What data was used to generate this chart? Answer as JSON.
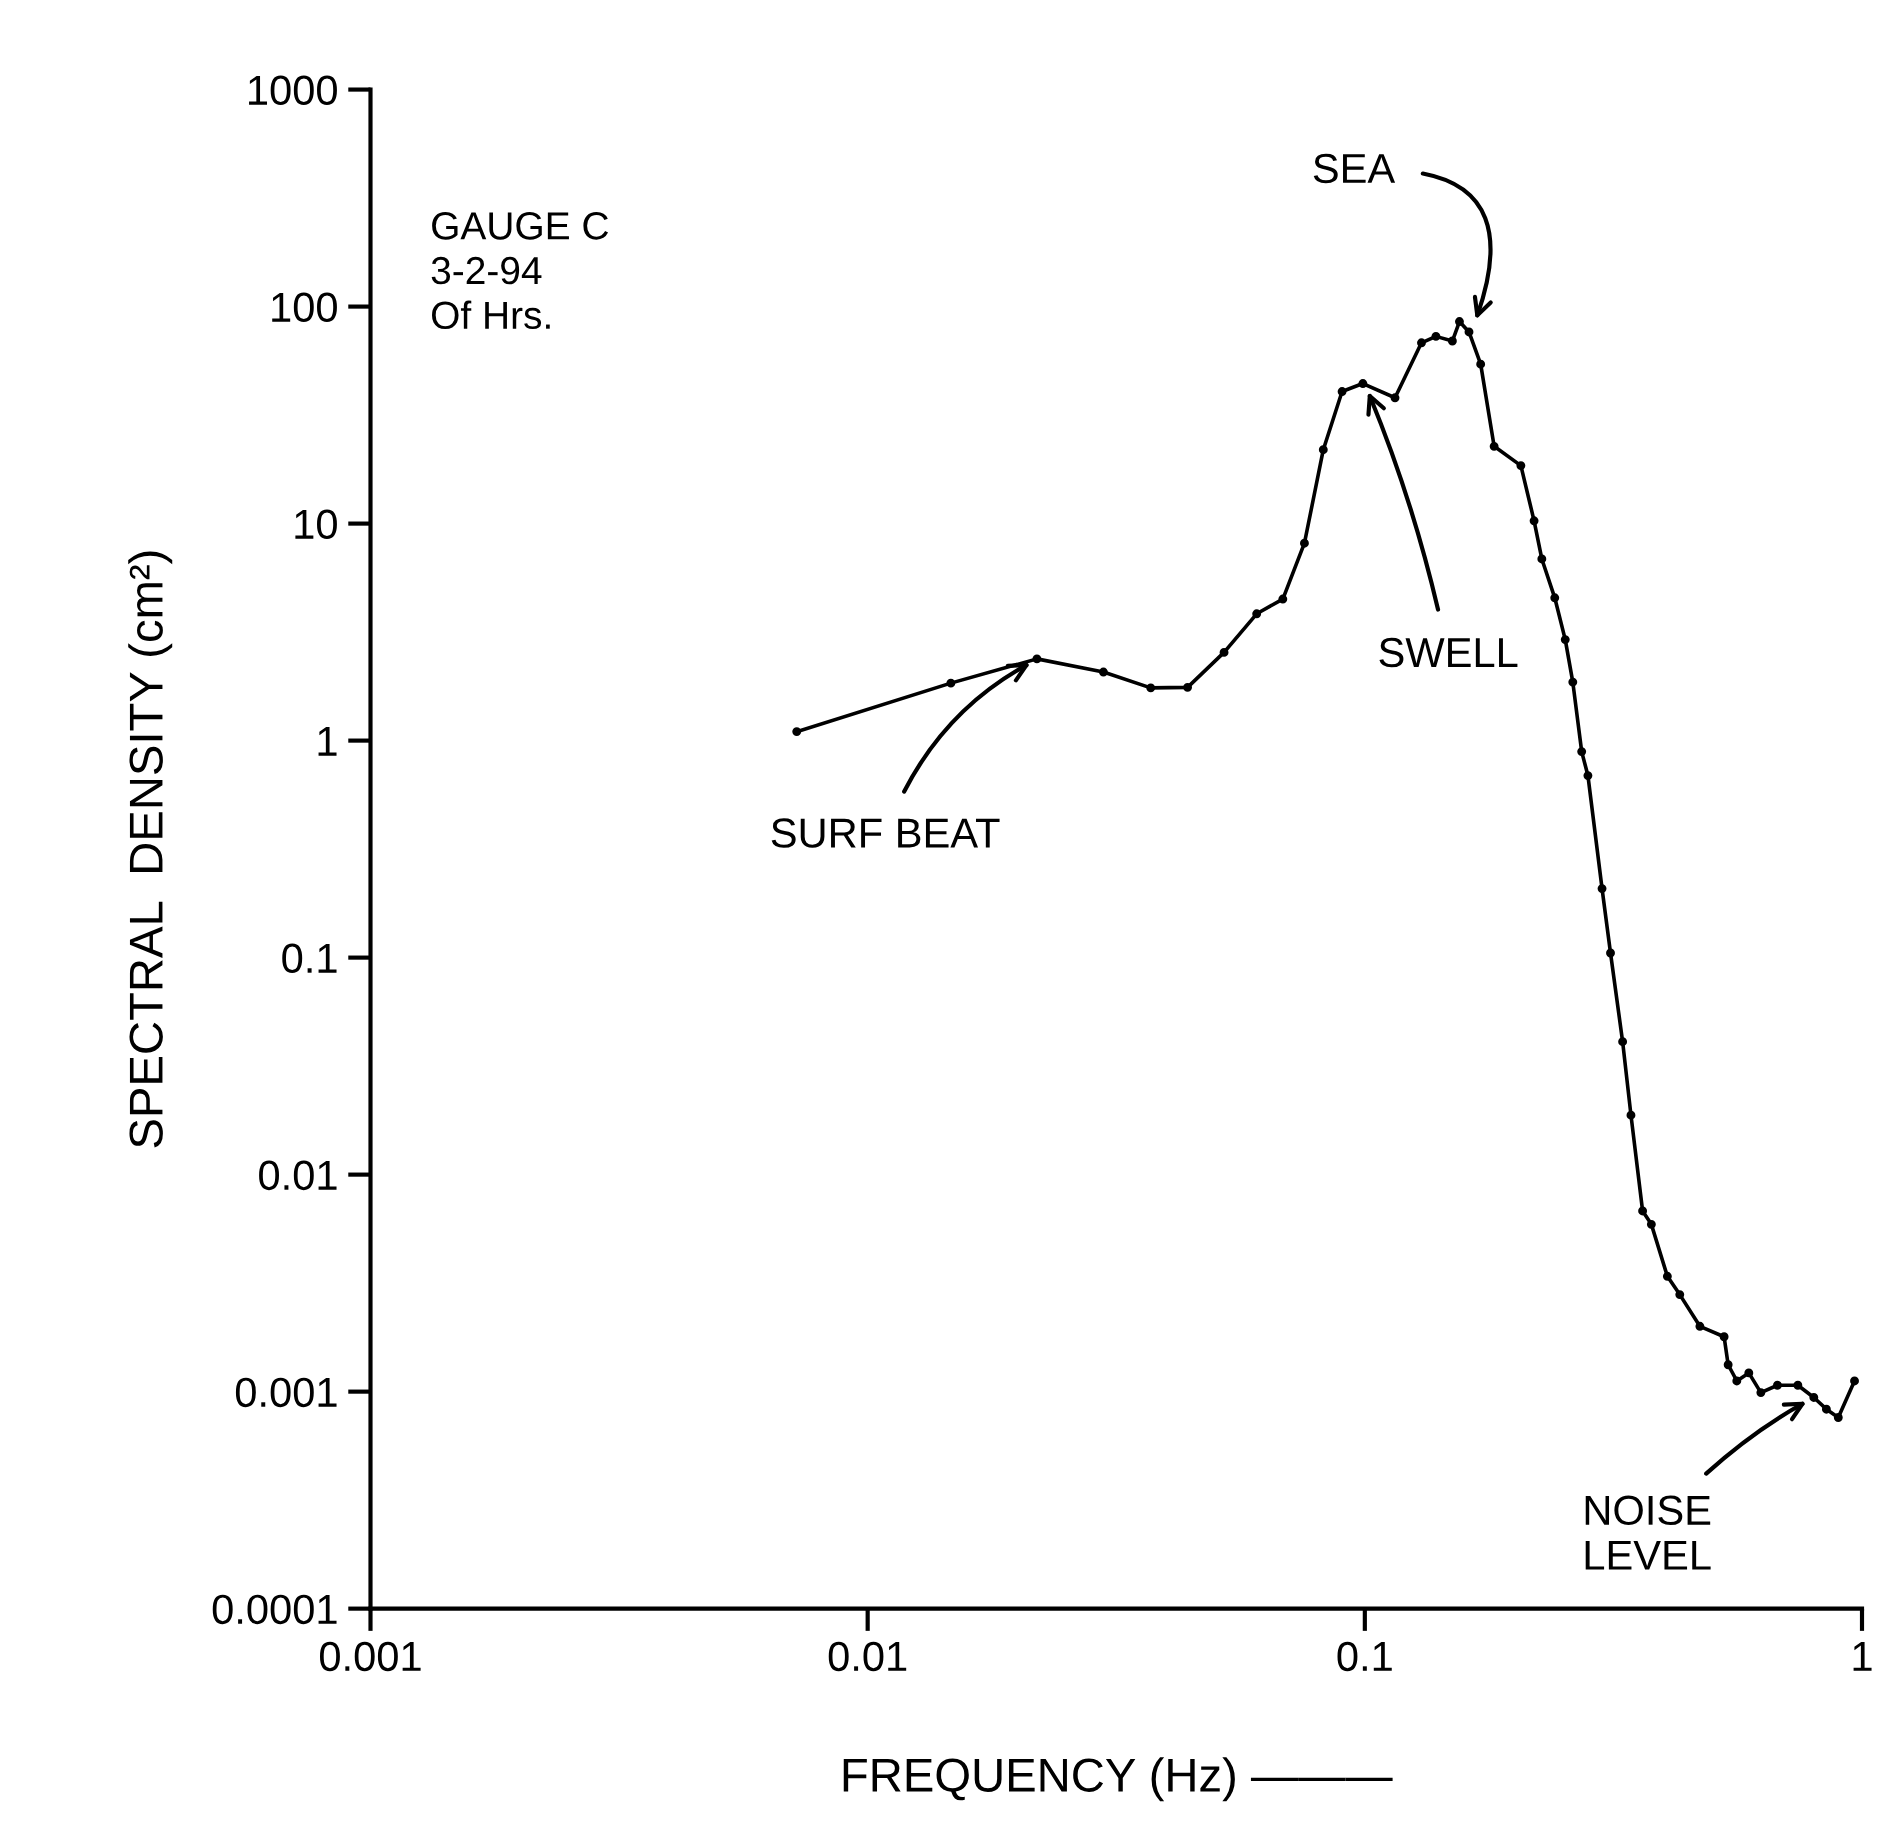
{
  "chart_data": {
    "type": "line",
    "xlabel": "FREQUENCY (Hz) ———",
    "ylabel": "SPECTRAL  DENSITY (cm²)",
    "log": "xy",
    "xlim": [
      0.001,
      1
    ],
    "ylim": [
      0.0001,
      1000
    ],
    "xticks": [
      0.001,
      0.01,
      0.1,
      1
    ],
    "yticks": [
      0.0001,
      0.001,
      0.01,
      0.1,
      1,
      10,
      100,
      1000
    ],
    "grid": false,
    "marker": "circle",
    "line_style": "solid",
    "series": [
      {
        "color": "#000000",
        "x": [
          0.0072,
          0.0147,
          0.0219,
          0.0298,
          0.0371,
          0.044,
          0.0521,
          0.0606,
          0.0684,
          0.0756,
          0.0825,
          0.09,
          0.0991,
          0.115,
          0.13,
          0.139,
          0.15,
          0.155,
          0.162,
          0.171,
          0.182,
          0.206,
          0.219,
          0.227,
          0.241,
          0.253,
          0.262,
          0.273,
          0.281,
          0.3,
          0.312,
          0.33,
          0.343,
          0.362,
          0.377,
          0.406,
          0.43,
          0.472,
          0.528,
          0.538,
          0.56,
          0.592,
          0.626,
          0.676,
          0.743,
          0.8,
          0.848,
          0.896,
          0.966
        ],
        "values": [
          1.1,
          1.84,
          2.38,
          2.07,
          1.75,
          1.76,
          2.55,
          3.84,
          4.49,
          8.12,
          21.9,
          40.6,
          44.2,
          38.0,
          68.1,
          72.9,
          69.4,
          85.3,
          76.4,
          54.3,
          22.7,
          18.5,
          10.3,
          6.87,
          4.55,
          2.92,
          1.86,
          0.89,
          0.69,
          0.208,
          0.105,
          0.041,
          0.0188,
          0.0068,
          0.0059,
          0.0034,
          0.0028,
          0.002,
          0.00179,
          0.00133,
          0.00112,
          0.00122,
          0.00099,
          0.00107,
          0.00107,
          0.00094,
          0.00083,
          0.00076,
          0.00112
        ]
      }
    ],
    "annotations": [
      "GAUGE C\n3-2-94\nOf Hrs.",
      {
        "text": "SURF BEAT",
        "x": 0.022,
        "y": 2.38
      },
      {
        "text": "SWELL",
        "x": 0.1,
        "y": 44
      },
      {
        "text": "SEA",
        "x": 0.165,
        "y": 80
      },
      {
        "text": "NOISE\nLEVEL",
        "x": 0.8,
        "y": 0.00094
      }
    ]
  }
}
